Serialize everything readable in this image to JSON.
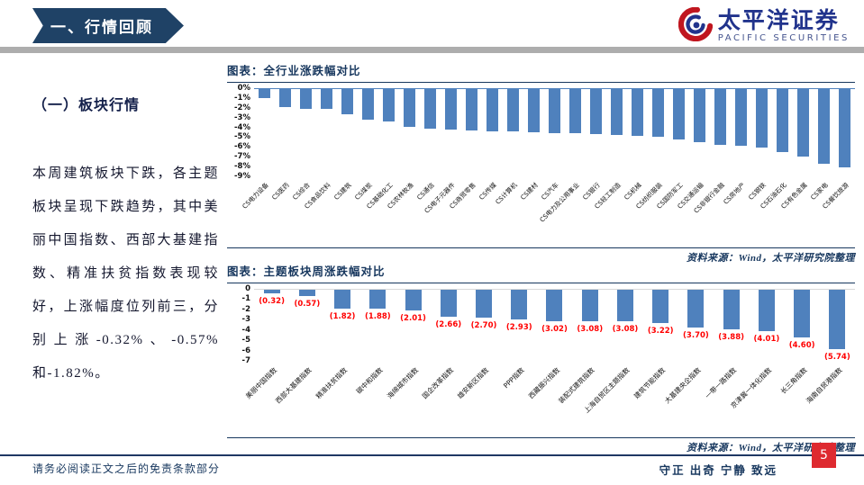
{
  "header": {
    "section_banner": "一、行情回顾",
    "logo": {
      "cn": "太平洋证券",
      "en": "PACIFIC SECURITIES"
    }
  },
  "sidebar": {
    "title": "（一）板块行情",
    "paragraph": "本周建筑板块下跌，各主题板块呈现下跌趋势，其中美丽中国指数、西部大基建指数、精准扶贫指数表现较好，上涨幅度位列前三，分别上涨-0.32%、-0.57%和-1.82%。"
  },
  "footer": {
    "left": "请务必阅读正文之后的免责条款部分",
    "right": "守正 出奇 宁静 致远",
    "page": "5"
  },
  "colors": {
    "bar_blue": "#4F81BD",
    "navy": "#17375E",
    "label_red": "#FF0000",
    "page_box_red": "#DE2A30"
  },
  "chart_data": [
    {
      "type": "bar",
      "title": "图表：全行业涨跌幅对比",
      "source": "资料来源：Wind，太平洋研究院整理",
      "categories": [
        "CS电力设备",
        "CS医药",
        "CS综合",
        "CS食品饮料",
        "CS建筑",
        "CS煤炭",
        "CS基础化工",
        "CS农林牧渔",
        "CS通信",
        "CS电子元器件",
        "CS商贸零售",
        "CS传媒",
        "CS计算机",
        "CS建材",
        "CS汽车",
        "CS电力及公用事业",
        "CS银行",
        "CS轻工制造",
        "CS机械",
        "CS纺织服装",
        "CS国防军工",
        "CS交通运输",
        "CS非银行金融",
        "CS房地产",
        "CS钢铁",
        "CS石油石化",
        "CS有色金属",
        "CS家电",
        "CS餐饮旅游"
      ],
      "values": [
        -0.9,
        -1.8,
        -2.0,
        -2.0,
        -2.6,
        -3.1,
        -3.3,
        -3.9,
        -4.0,
        -4.1,
        -4.2,
        -4.3,
        -4.3,
        -4.4,
        -4.5,
        -4.5,
        -4.6,
        -4.7,
        -4.8,
        -4.9,
        -5.1,
        -5.4,
        -5.7,
        -5.8,
        -6.0,
        -6.4,
        -6.9,
        -7.6,
        -8.0
      ],
      "ylim": [
        -9,
        0
      ],
      "yticks": [
        "0%",
        "-1%",
        "-2%",
        "-3%",
        "-4%",
        "-5%",
        "-6%",
        "-7%",
        "-8%",
        "-9%"
      ],
      "bar_color": "#4F81BD",
      "axis_line_color": "#4F81BD",
      "grid": false,
      "legend": "none",
      "xlabel": "",
      "ylabel": ""
    },
    {
      "type": "bar",
      "title": "图表：主题板块周涨跌幅对比",
      "source": "资料来源：Wind，太平洋研究院整理",
      "categories": [
        "美丽中国指数",
        "西部大基建指数",
        "精准扶贫指数",
        "碳中和指数",
        "海绵城市指数",
        "国企改革指数",
        "雄安新区指数",
        "PPP指数",
        "西藏振兴指数",
        "装配式建筑指数",
        "上海自贸区主题指数",
        "建筑节能指数",
        "大基建央企指数",
        "一带一路指数",
        "京津冀一体化指数",
        "长三角指数",
        "海南自贸港指数"
      ],
      "values": [
        -0.32,
        -0.57,
        -1.82,
        -1.88,
        -2.01,
        -2.66,
        -2.7,
        -2.93,
        -3.02,
        -3.08,
        -3.08,
        -3.22,
        -3.7,
        -3.88,
        -4.01,
        -4.6,
        -5.74
      ],
      "value_labels": [
        "(0.32)",
        "(0.57)",
        "(1.82)",
        "(1.88)",
        "(2.01)",
        "(2.66)",
        "(2.70)",
        "(2.93)",
        "(3.02)",
        "(3.08)",
        "(3.08)",
        "(3.22)",
        "(3.70)",
        "(3.88)",
        "(4.01)",
        "(4.60)",
        "(5.74)"
      ],
      "ylim": [
        -7,
        0
      ],
      "yticks": [
        "0",
        "-1",
        "-2",
        "-3",
        "-4",
        "-5",
        "-6",
        "-7"
      ],
      "bar_color": "#4F81BD",
      "axis_line_color": "#D9D9D9",
      "value_label_color": "#FF0000",
      "grid": false,
      "legend": "none",
      "xlabel": "",
      "ylabel": ""
    }
  ]
}
